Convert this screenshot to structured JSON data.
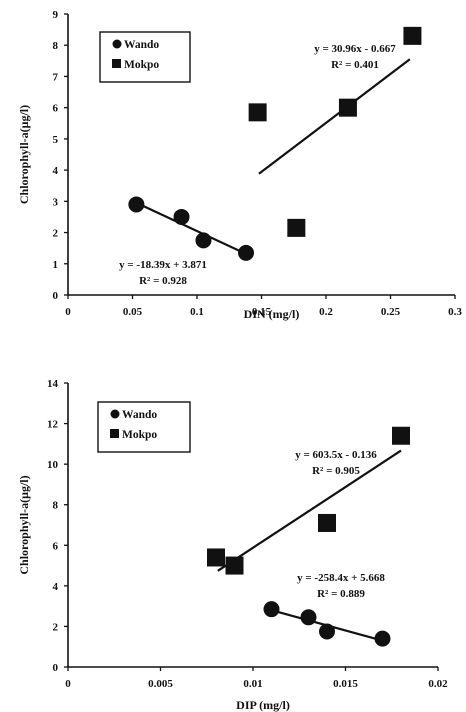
{
  "chart_data": [
    {
      "type": "scatter",
      "xlabel": "DIN (mg/l)",
      "ylabel": "Chlorophyll-a(μg/l)",
      "xlim": [
        0,
        0.3
      ],
      "ylim": [
        0,
        9
      ],
      "x_ticks": [
        "0",
        "0.05",
        "0.1",
        "0.15",
        "0.2",
        "0.25",
        "0.3"
      ],
      "y_ticks": [
        "0",
        "1",
        "2",
        "3",
        "4",
        "5",
        "6",
        "7",
        "8",
        "9"
      ],
      "legend_position": "top-left",
      "series": [
        {
          "name": "Wando",
          "marker": "circle",
          "points": [
            [
              0.053,
              2.9
            ],
            [
              0.088,
              2.5
            ],
            [
              0.105,
              1.75
            ],
            [
              0.138,
              1.35
            ]
          ],
          "trendline": {
            "x_range": [
              0.05,
              0.14
            ]
          },
          "equation": "y = -18.39x + 3.871",
          "r2": "R² = 0.928"
        },
        {
          "name": "Mokpo",
          "marker": "square",
          "points": [
            [
              0.147,
              5.85
            ],
            [
              0.177,
              2.15
            ],
            [
              0.217,
              6.0
            ],
            [
              0.267,
              8.3
            ]
          ],
          "trendline": {
            "x_range": [
              0.148,
              0.265
            ]
          },
          "equation": "y = 30.96x - 0.667",
          "r2": "R² = 0.401"
        }
      ]
    },
    {
      "type": "scatter",
      "xlabel": "DIP (mg/l)",
      "ylabel": "Chlorophyll-a(μg/l)",
      "xlim": [
        0,
        0.02
      ],
      "ylim": [
        0,
        14
      ],
      "x_ticks": [
        "0",
        "0.005",
        "0.01",
        "0.015",
        "0.02"
      ],
      "y_ticks": [
        "0",
        "2",
        "4",
        "6",
        "8",
        "10",
        "12",
        "14"
      ],
      "legend_position": "top-left",
      "series": [
        {
          "name": "Wando",
          "marker": "circle",
          "points": [
            [
              0.011,
              2.85
            ],
            [
              0.013,
              2.45
            ],
            [
              0.014,
              1.75
            ],
            [
              0.017,
              1.4
            ]
          ],
          "trendline": {
            "x_range": [
              0.011,
              0.0172
            ]
          },
          "equation": "y = -258.4x + 5.668",
          "r2": "R² = 0.889"
        },
        {
          "name": "Mokpo",
          "marker": "square",
          "points": [
            [
              0.008,
              5.4
            ],
            [
              0.009,
              5.0
            ],
            [
              0.014,
              7.1
            ],
            [
              0.018,
              11.4
            ]
          ],
          "trendline": {
            "x_range": [
              0.0081,
              0.018
            ]
          },
          "equation": "y = 603.5x - 0.136",
          "r2": "R² = 0.905"
        }
      ]
    }
  ]
}
